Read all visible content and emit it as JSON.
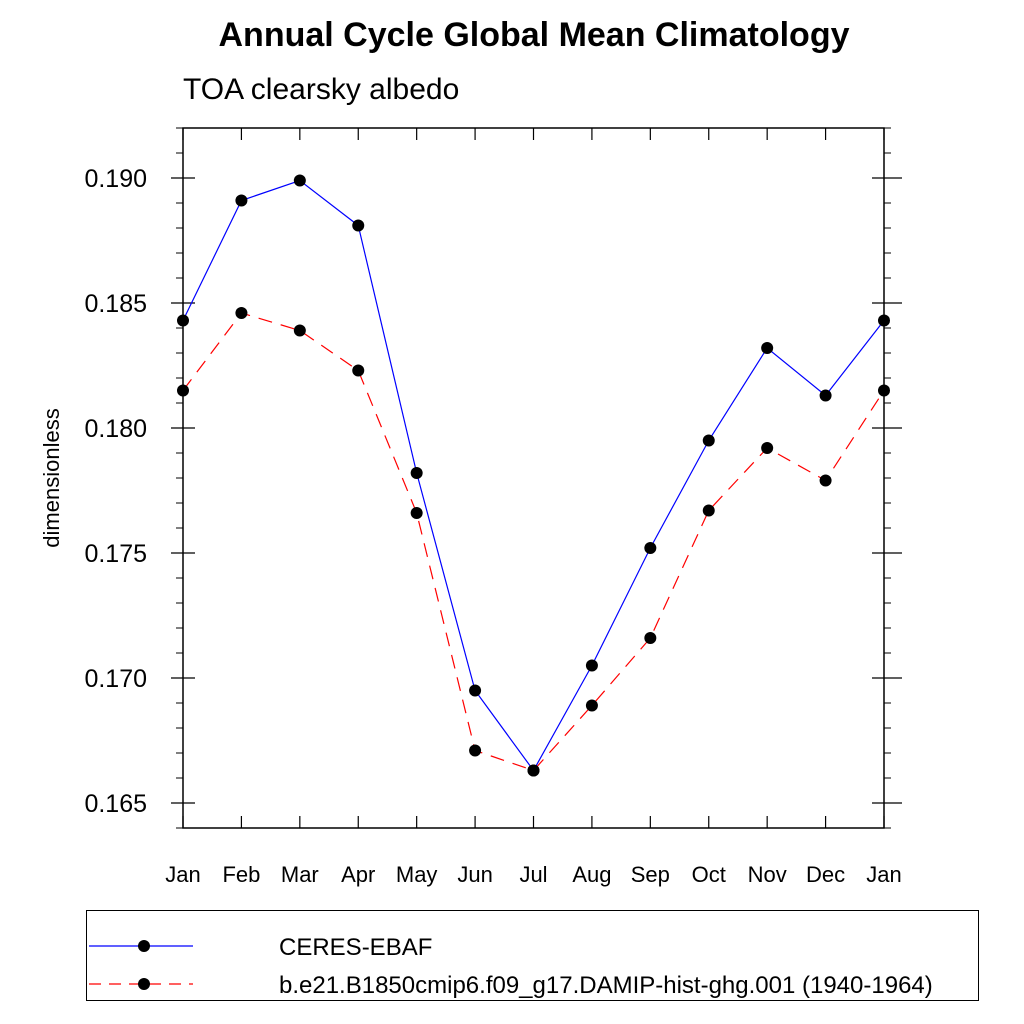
{
  "chart_data": {
    "type": "line",
    "title": "Annual Cycle Global Mean Climatology",
    "subtitle": "TOA clearsky albedo",
    "xlabel": "",
    "ylabel": "dimensionless",
    "categories": [
      "Jan",
      "Feb",
      "Mar",
      "Apr",
      "May",
      "Jun",
      "Jul",
      "Aug",
      "Sep",
      "Oct",
      "Nov",
      "Dec",
      "Jan"
    ],
    "yticks": [
      "0.165",
      "0.170",
      "0.175",
      "0.180",
      "0.185",
      "0.190"
    ],
    "ylim": [
      0.164,
      0.192
    ],
    "grid": false,
    "legend_position": "bottom",
    "series": [
      {
        "name": "CERES-EBAF",
        "color": "#0000ff",
        "dash": "solid",
        "marker": "filled-circle",
        "values": [
          0.1843,
          0.1891,
          0.1899,
          0.1881,
          0.1782,
          0.1695,
          0.1663,
          0.1705,
          0.1752,
          0.1795,
          0.1832,
          0.1813,
          0.1843
        ]
      },
      {
        "name": "b.e21.B1850cmip6.f09_g17.DAMIP-hist-ghg.001 (1940-1964)",
        "color": "#ff0000",
        "dash": "dashed",
        "marker": "filled-circle",
        "values": [
          0.1815,
          0.1846,
          0.1839,
          0.1823,
          0.1766,
          0.1671,
          0.1663,
          0.1689,
          0.1716,
          0.1767,
          0.1792,
          0.1779,
          0.1815
        ]
      }
    ]
  }
}
